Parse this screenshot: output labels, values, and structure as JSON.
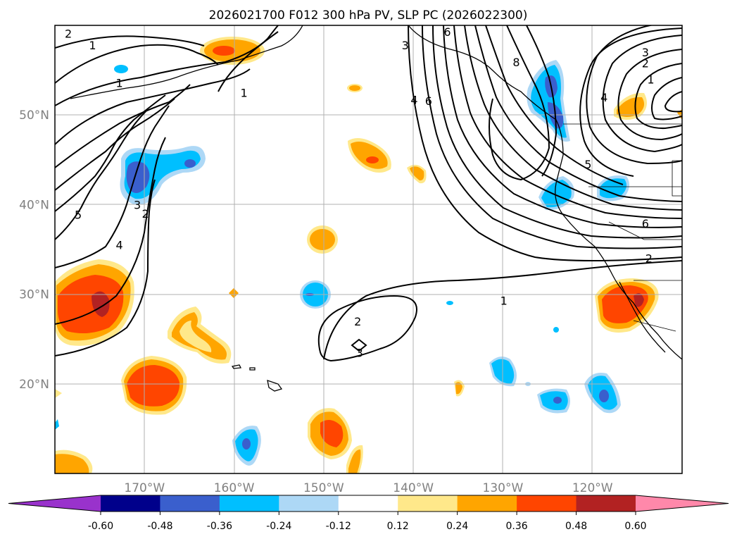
{
  "chart_data": {
    "type": "map-contour",
    "title": "2026021700 F012 300 hPa PV, SLP PC (2026022300)",
    "x_axis": {
      "ticks": [
        {
          "value": -170,
          "label": "170°W"
        },
        {
          "value": -160,
          "label": "160°W"
        },
        {
          "value": -150,
          "label": "150°W"
        },
        {
          "value": -140,
          "label": "140°W"
        },
        {
          "value": -130,
          "label": "130°W"
        },
        {
          "value": -120,
          "label": "120°W"
        }
      ],
      "range": [
        -180,
        -110
      ]
    },
    "y_axis": {
      "ticks": [
        {
          "value": 20,
          "label": "20°N"
        },
        {
          "value": 30,
          "label": "30°N"
        },
        {
          "value": 40,
          "label": "40°N"
        },
        {
          "value": 50,
          "label": "50°N"
        }
      ],
      "range": [
        10,
        60
      ]
    },
    "grid": true,
    "colorbar": {
      "boundaries": [
        "-0.60",
        "-0.48",
        "-0.36",
        "-0.24",
        "-0.12",
        "0.12",
        "0.24",
        "0.36",
        "0.48",
        "0.60"
      ],
      "colors": [
        "#9932cc",
        "#00008b",
        "#3a5fcd",
        "#00bfff",
        "#add8f6",
        "#ffffff",
        "#ffe88a",
        "#ffa500",
        "#ff4500",
        "#b22222",
        "#ff88aa"
      ],
      "extend": "both"
    },
    "contour_labels": [
      {
        "text": "2",
        "lon": -178.5,
        "lat": 59.1
      },
      {
        "text": "1",
        "lon": -175.8,
        "lat": 57.8
      },
      {
        "text": "1",
        "lon": -172.8,
        "lat": 53.6
      },
      {
        "text": "1",
        "lon": -158.9,
        "lat": 52.5
      },
      {
        "text": "5",
        "lon": -177.4,
        "lat": 38.9
      },
      {
        "text": "4",
        "lon": -172.8,
        "lat": 35.5
      },
      {
        "text": "3",
        "lon": -170.8,
        "lat": 40.0
      },
      {
        "text": "2",
        "lon": -169.9,
        "lat": 39.0
      },
      {
        "text": "2",
        "lon": -146.2,
        "lat": 27.0
      },
      {
        "text": "3",
        "lon": -146.0,
        "lat": 23.5
      },
      {
        "text": "1",
        "lon": -129.9,
        "lat": 29.3
      },
      {
        "text": "6",
        "lon": -136.2,
        "lat": 59.3
      },
      {
        "text": "3",
        "lon": -140.9,
        "lat": 57.8
      },
      {
        "text": "8",
        "lon": -128.5,
        "lat": 55.9
      },
      {
        "text": "4",
        "lon": -139.9,
        "lat": 51.7
      },
      {
        "text": "6",
        "lon": -138.3,
        "lat": 51.6
      },
      {
        "text": "3",
        "lon": -114.1,
        "lat": 57.0
      },
      {
        "text": "2",
        "lon": -114.1,
        "lat": 55.8
      },
      {
        "text": "1",
        "lon": -113.5,
        "lat": 54.0
      },
      {
        "text": "4",
        "lon": -118.7,
        "lat": 52.0
      },
      {
        "text": "5",
        "lon": -120.5,
        "lat": 44.5
      },
      {
        "text": "6",
        "lon": -114.1,
        "lat": 37.9
      },
      {
        "text": "2",
        "lon": -113.7,
        "lat": 34.0
      }
    ]
  }
}
